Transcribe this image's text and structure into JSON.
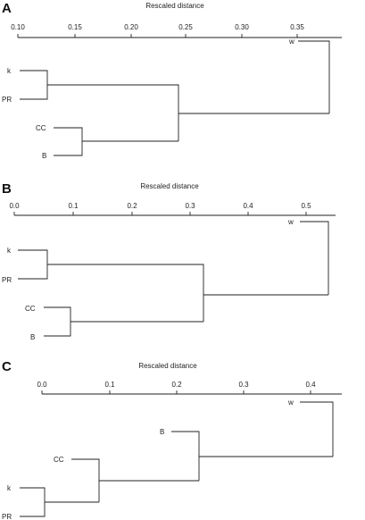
{
  "panels": [
    {
      "letter": "A",
      "axis_title": "Rescaled distance",
      "ticks": [
        {
          "label": "0.10",
          "value": 0.1
        },
        {
          "label": "0.15",
          "value": 0.15
        },
        {
          "label": "0.20",
          "value": 0.2
        },
        {
          "label": "0.25",
          "value": 0.25
        },
        {
          "label": "0.30",
          "value": 0.3
        },
        {
          "label": "0.35",
          "value": 0.35
        }
      ],
      "leaves": [
        "w",
        "k",
        "PR",
        "CC",
        "B"
      ]
    },
    {
      "letter": "B",
      "axis_title": "Rescaled distance",
      "ticks": [
        {
          "label": "0.0",
          "value": 0.0
        },
        {
          "label": "0.1",
          "value": 0.1
        },
        {
          "label": "0.2",
          "value": 0.2
        },
        {
          "label": "0.3",
          "value": 0.3
        },
        {
          "label": "0.4",
          "value": 0.4
        },
        {
          "label": "0.5",
          "value": 0.5
        }
      ],
      "leaves": [
        "w",
        "k",
        "PR",
        "CC",
        "B"
      ]
    },
    {
      "letter": "C",
      "axis_title": "Rescaled distance",
      "ticks": [
        {
          "label": "0.0",
          "value": 0.0
        },
        {
          "label": "0.1",
          "value": 0.1
        },
        {
          "label": "0.2",
          "value": 0.2
        },
        {
          "label": "0.3",
          "value": 0.3
        },
        {
          "label": "0.4",
          "value": 0.4
        }
      ],
      "leaves": [
        "w",
        "B",
        "CC",
        "k",
        "PR"
      ]
    }
  ]
}
